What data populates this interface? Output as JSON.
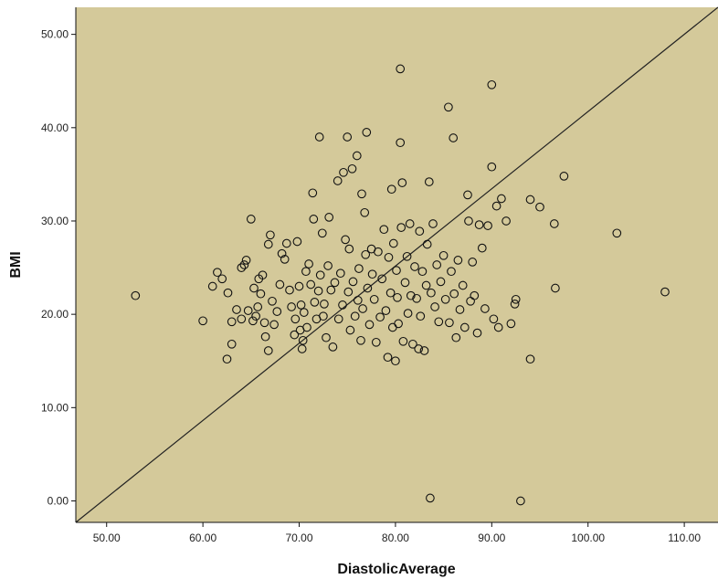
{
  "chart_data": {
    "type": "scatter",
    "title": "",
    "xlabel": "DiastolicAverage",
    "ylabel": "BMI",
    "xlim": [
      46.8,
      113.5
    ],
    "ylim": [
      -2.3,
      52.9
    ],
    "xticks": [
      "50.00",
      "60.00",
      "70.00",
      "80.00",
      "90.00",
      "100.00",
      "110.00"
    ],
    "yticks": [
      "0.00",
      "10.00",
      "20.00",
      "30.00",
      "40.00",
      "50.00"
    ],
    "grid": false,
    "legend": "none",
    "colors": {
      "plot_background": "#d4c99a",
      "marker_stroke": "#111111",
      "fit_line": "#222222"
    },
    "fit_line": {
      "x": [
        46.8,
        113.5
      ],
      "y": [
        -2.3,
        52.9
      ]
    },
    "series": [
      {
        "points": [
          [
            53,
            22
          ],
          [
            60,
            19.3
          ],
          [
            61,
            23
          ],
          [
            61.5,
            24.5
          ],
          [
            62,
            23.8
          ],
          [
            62.5,
            15.2
          ],
          [
            62.6,
            22.3
          ],
          [
            63,
            16.8
          ],
          [
            63,
            19.2
          ],
          [
            63.5,
            20.5
          ],
          [
            64,
            19.5
          ],
          [
            64,
            25
          ],
          [
            64.3,
            25.3
          ],
          [
            64.5,
            25.8
          ],
          [
            64.7,
            20.4
          ],
          [
            65,
            30.2
          ],
          [
            65.2,
            19.3
          ],
          [
            65.3,
            22.8
          ],
          [
            65.5,
            19.8
          ],
          [
            65.7,
            20.8
          ],
          [
            65.8,
            23.8
          ],
          [
            66,
            22.2
          ],
          [
            66.2,
            24.2
          ],
          [
            66.4,
            19.1
          ],
          [
            66.5,
            17.6
          ],
          [
            66.8,
            16.1
          ],
          [
            66.8,
            27.5
          ],
          [
            67,
            28.5
          ],
          [
            67.2,
            21.4
          ],
          [
            67.4,
            18.9
          ],
          [
            67.7,
            20.3
          ],
          [
            68,
            23.2
          ],
          [
            68.2,
            26.5
          ],
          [
            68.5,
            25.9
          ],
          [
            68.7,
            27.6
          ],
          [
            69,
            22.6
          ],
          [
            69.2,
            20.8
          ],
          [
            69.5,
            17.8
          ],
          [
            69.6,
            19.5
          ],
          [
            69.8,
            27.8
          ],
          [
            70,
            23.0
          ],
          [
            70.1,
            18.3
          ],
          [
            70.2,
            21.0
          ],
          [
            70.3,
            16.3
          ],
          [
            70.4,
            17.2
          ],
          [
            70.5,
            20.2
          ],
          [
            70.7,
            24.6
          ],
          [
            70.8,
            18.6
          ],
          [
            71,
            25.4
          ],
          [
            71.2,
            23.2
          ],
          [
            71.4,
            33
          ],
          [
            71.5,
            30.2
          ],
          [
            71.6,
            21.3
          ],
          [
            71.8,
            19.5
          ],
          [
            72,
            22.5
          ],
          [
            72.1,
            39
          ],
          [
            72.2,
            24.2
          ],
          [
            72.4,
            28.7
          ],
          [
            72.5,
            19.8
          ],
          [
            72.6,
            21.1
          ],
          [
            72.8,
            17.5
          ],
          [
            73,
            25.2
          ],
          [
            73.1,
            30.4
          ],
          [
            73.3,
            22.6
          ],
          [
            73.5,
            16.5
          ],
          [
            73.7,
            23.4
          ],
          [
            74,
            34.3
          ],
          [
            74.1,
            19.5
          ],
          [
            74.3,
            24.4
          ],
          [
            74.5,
            21.0
          ],
          [
            74.6,
            35.2
          ],
          [
            74.8,
            28
          ],
          [
            75,
            39
          ],
          [
            75.1,
            22.4
          ],
          [
            75.2,
            27
          ],
          [
            75.3,
            18.3
          ],
          [
            75.5,
            35.6
          ],
          [
            75.6,
            23.5
          ],
          [
            75.8,
            19.8
          ],
          [
            76,
            37.0
          ],
          [
            76.1,
            21.5
          ],
          [
            76.2,
            24.9
          ],
          [
            76.4,
            17.2
          ],
          [
            76.5,
            32.9
          ],
          [
            76.6,
            20.6
          ],
          [
            76.8,
            30.9
          ],
          [
            76.9,
            26.4
          ],
          [
            77,
            39.5
          ],
          [
            77.1,
            22.8
          ],
          [
            77.3,
            18.9
          ],
          [
            77.5,
            27.0
          ],
          [
            77.6,
            24.3
          ],
          [
            77.8,
            21.6
          ],
          [
            78,
            17.0
          ],
          [
            78.2,
            26.7
          ],
          [
            78.4,
            19.7
          ],
          [
            78.6,
            23.8
          ],
          [
            78.8,
            29.1
          ],
          [
            79,
            20.4
          ],
          [
            79.2,
            15.4
          ],
          [
            79.3,
            26.1
          ],
          [
            79.5,
            22.3
          ],
          [
            79.6,
            33.4
          ],
          [
            79.7,
            18.6
          ],
          [
            79.8,
            27.6
          ],
          [
            80,
            15.0
          ],
          [
            80.1,
            24.7
          ],
          [
            80.2,
            21.8
          ],
          [
            80.3,
            19.0
          ],
          [
            80.5,
            46.3
          ],
          [
            80.5,
            38.4
          ],
          [
            80.6,
            29.3
          ],
          [
            80.7,
            34.1
          ],
          [
            80.8,
            17.1
          ],
          [
            81,
            23.4
          ],
          [
            81.2,
            26.2
          ],
          [
            81.3,
            20.1
          ],
          [
            81.5,
            29.7
          ],
          [
            81.6,
            22.0
          ],
          [
            81.8,
            16.8
          ],
          [
            82,
            25.1
          ],
          [
            82.2,
            21.7
          ],
          [
            82.4,
            16.3
          ],
          [
            82.5,
            28.9
          ],
          [
            82.6,
            19.8
          ],
          [
            82.8,
            24.6
          ],
          [
            83,
            16.1
          ],
          [
            83.2,
            23.1
          ],
          [
            83.3,
            27.5
          ],
          [
            83.5,
            34.2
          ],
          [
            83.6,
            0.3
          ],
          [
            83.7,
            22.3
          ],
          [
            83.9,
            29.7
          ],
          [
            84.1,
            20.8
          ],
          [
            84.3,
            25.3
          ],
          [
            84.5,
            19.2
          ],
          [
            84.7,
            23.5
          ],
          [
            85,
            26.3
          ],
          [
            85.2,
            21.6
          ],
          [
            85.5,
            42.2
          ],
          [
            85.6,
            19.1
          ],
          [
            85.8,
            24.6
          ],
          [
            86,
            38.9
          ],
          [
            86.1,
            22.2
          ],
          [
            86.3,
            17.5
          ],
          [
            86.5,
            25.8
          ],
          [
            86.7,
            20.5
          ],
          [
            87,
            23.1
          ],
          [
            87.2,
            18.6
          ],
          [
            87.5,
            32.8
          ],
          [
            87.6,
            30.0
          ],
          [
            87.8,
            21.4
          ],
          [
            88,
            25.6
          ],
          [
            88.2,
            22.0
          ],
          [
            88.5,
            18.0
          ],
          [
            88.7,
            29.6
          ],
          [
            89,
            27.1
          ],
          [
            89.3,
            20.6
          ],
          [
            89.6,
            29.5
          ],
          [
            90,
            44.6
          ],
          [
            90,
            35.8
          ],
          [
            90.2,
            19.5
          ],
          [
            90.5,
            31.6
          ],
          [
            90.7,
            18.6
          ],
          [
            91,
            32.4
          ],
          [
            91.5,
            30.0
          ],
          [
            92,
            19.0
          ],
          [
            92.4,
            21.1
          ],
          [
            92.5,
            21.6
          ],
          [
            93,
            0.0
          ],
          [
            94,
            32.3
          ],
          [
            94,
            15.2
          ],
          [
            95,
            31.5
          ],
          [
            96.5,
            29.7
          ],
          [
            96.6,
            22.8
          ],
          [
            97.5,
            34.8
          ],
          [
            103,
            28.7
          ],
          [
            108,
            22.4
          ]
        ]
      }
    ]
  }
}
